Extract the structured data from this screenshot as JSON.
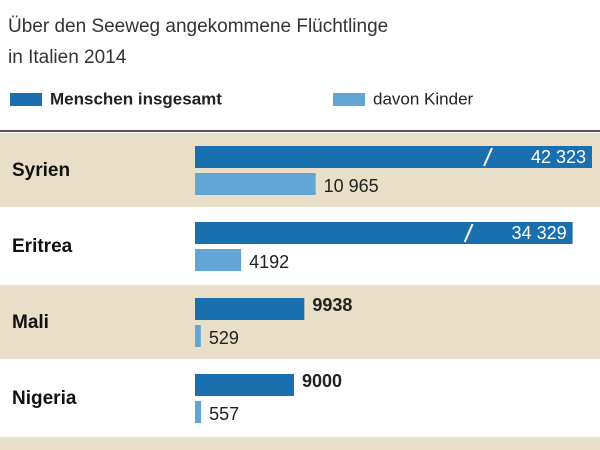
{
  "chart_data": {
    "type": "bar",
    "orientation": "horizontal",
    "subtitle": [
      "Über den Seeweg angekommene Flüchtlinge",
      "in Italien 2014"
    ],
    "categories": [
      "Syrien",
      "Eritrea",
      "Mali",
      "Nigeria"
    ],
    "series": [
      {
        "name": "Menschen insgesamt",
        "color": "#1a6faf",
        "values": [
          42323,
          34329,
          9938,
          9000
        ],
        "value_labels": [
          "42 323",
          "34 329",
          "9938",
          "9000"
        ]
      },
      {
        "name": "davon Kinder",
        "color": "#62a6d6",
        "values": [
          10965,
          4192,
          529,
          557
        ],
        "value_labels": [
          "10 965",
          "4192",
          "529",
          "557"
        ]
      }
    ]
  }
}
